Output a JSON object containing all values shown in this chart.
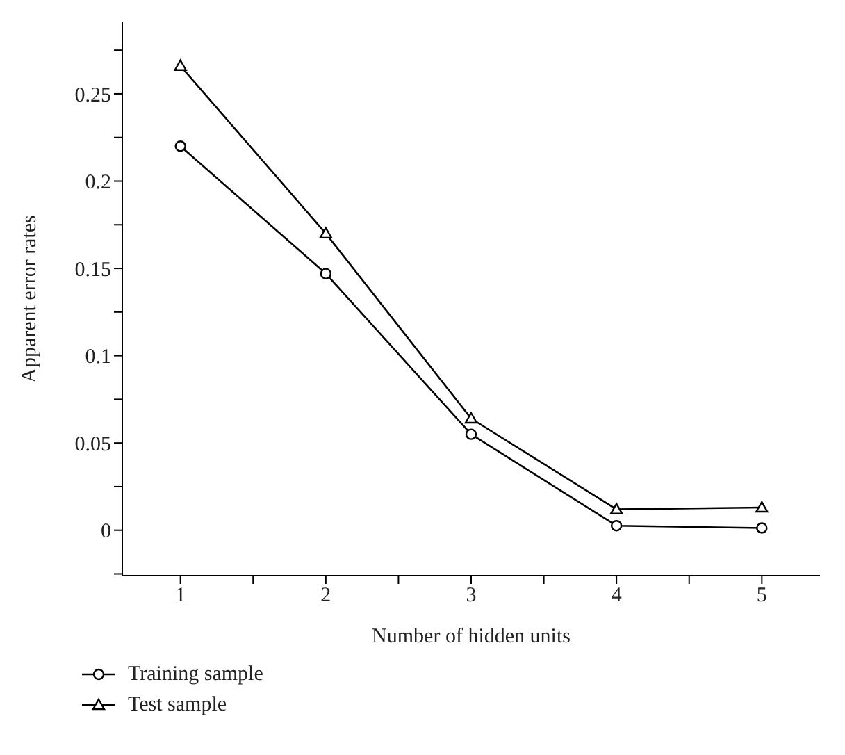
{
  "chart_data": {
    "type": "line",
    "xlabel": "Number of hidden units",
    "ylabel": "Apparent error rates",
    "x": [
      1,
      2,
      3,
      4,
      5
    ],
    "series": [
      {
        "name": "Training sample",
        "color": "#000000",
        "marker": "circle",
        "values": [
          0.22,
          0.147,
          0.055,
          0.0026,
          0.0013
        ]
      },
      {
        "name": "Test sample",
        "color": "#000000",
        "marker": "triangle",
        "values": [
          0.266,
          0.17,
          0.064,
          0.012,
          0.013
        ]
      }
    ],
    "xlim": [
      0.6,
      5.4
    ],
    "xticks": [
      1,
      {
        "value": 1.5,
        "label": null
      },
      2,
      {
        "value": 2.5,
        "label": null
      },
      3,
      {
        "value": 3.5,
        "label": null
      },
      4,
      {
        "value": 4.5,
        "label": null
      },
      5
    ],
    "ylim": [
      -0.026,
      0.291
    ],
    "yticks": [
      {
        "value": -0.025,
        "label": null
      },
      0,
      {
        "value": 0.025,
        "label": null
      },
      0.05,
      {
        "value": 0.075,
        "label": null
      },
      0.1,
      {
        "value": 0.125,
        "label": null
      },
      0.15,
      {
        "value": 0.175,
        "label": null
      },
      0.2,
      {
        "value": 0.225,
        "label": null
      },
      0.25,
      {
        "value": 0.275,
        "label": null
      }
    ],
    "grid": false,
    "legend": "bottom",
    "line_style": "solid"
  }
}
